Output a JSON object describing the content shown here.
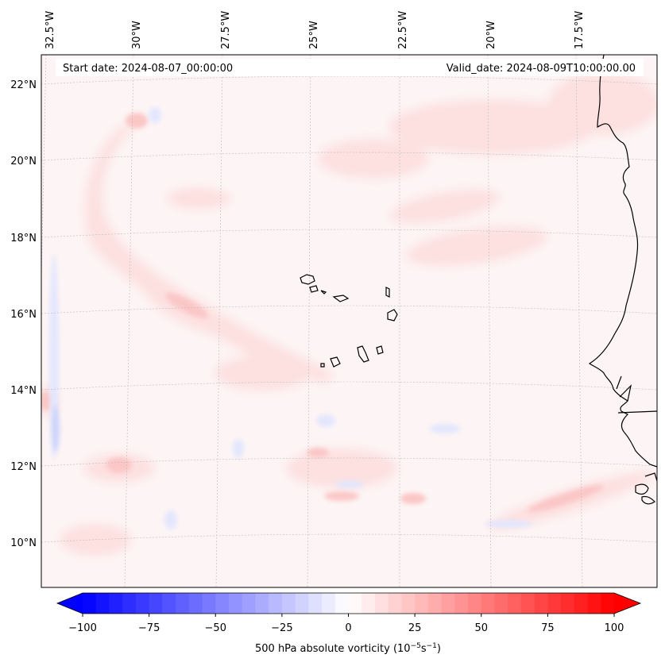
{
  "map": {
    "title_start": "Start date: 2024-08-07_00:00:00",
    "title_valid": "Valid_date: 2024-08-09T10:00:00.00",
    "lon_labels": [
      "32.5°W",
      "30°W",
      "27.5°W",
      "25°W",
      "22.5°W",
      "20°W",
      "17.5°W"
    ],
    "lat_labels": [
      "22°N",
      "20°N",
      "18°N",
      "16°N",
      "14°N",
      "12°N",
      "10°N"
    ],
    "colorbar": {
      "label": "500 hPa absolute vorticity (10",
      "label_exp1": "−5",
      "label_mid": "s",
      "label_exp2": "−1",
      "label_end": ")",
      "ticks": [
        "−100",
        "−75",
        "−50",
        "−25",
        "0",
        "25",
        "50",
        "75",
        "100"
      ],
      "vmin": -100,
      "vmax": 100,
      "low_color": "#0000ff",
      "mid_color": "#ffffff",
      "high_color": "#ff0000"
    }
  }
}
